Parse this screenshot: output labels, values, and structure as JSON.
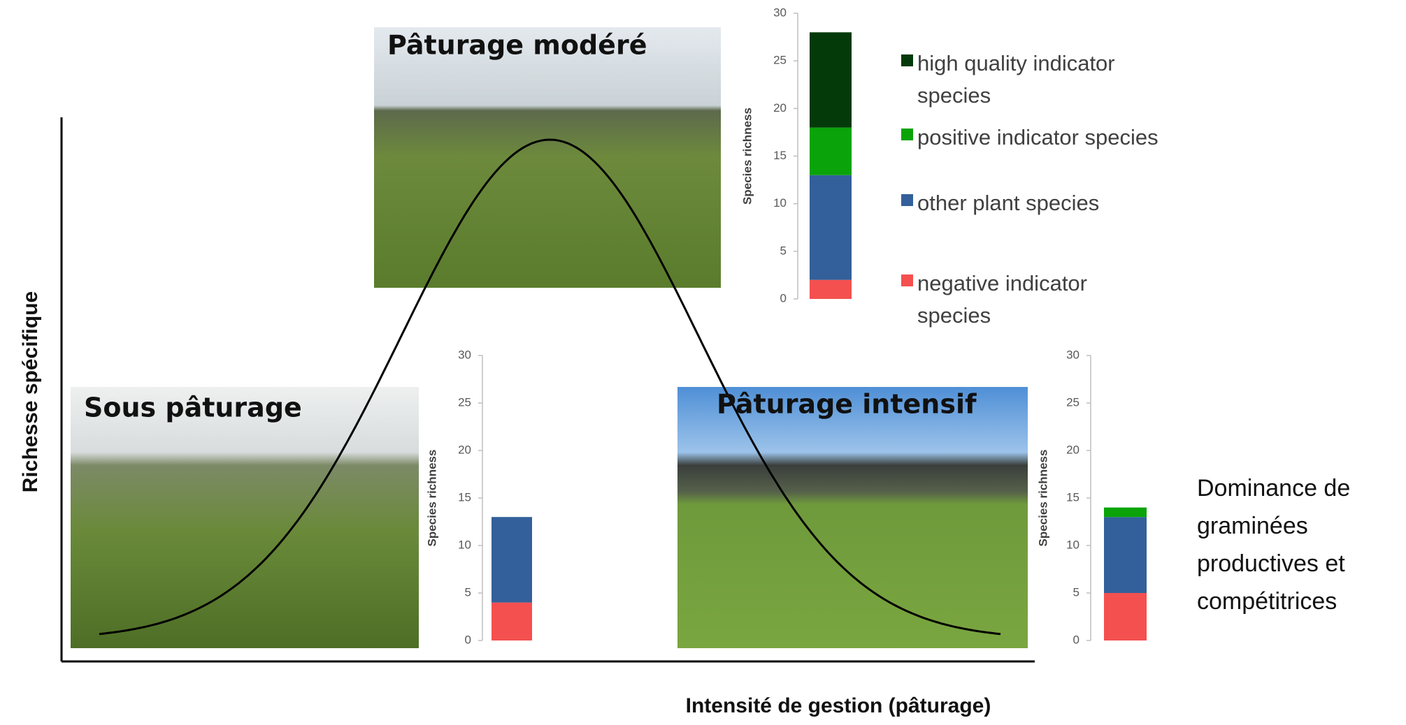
{
  "chart_data": [
    {
      "type": "bar",
      "stacked": true,
      "ylabel": "Species richness",
      "categories": [
        null
      ],
      "ylim": [
        0,
        30
      ],
      "yticks": [
        0,
        5,
        10,
        15,
        20,
        25,
        30
      ],
      "legend": true,
      "series": [
        {
          "name": "negative indicator species",
          "color": "#f4504f",
          "values": [
            2
          ]
        },
        {
          "name": "other plant species",
          "color": "#33609a",
          "values": [
            11
          ]
        },
        {
          "name": "positive indicator species",
          "color": "#0aa30a",
          "values": [
            5
          ]
        },
        {
          "name": "high quality indicator species",
          "color": "#043a0a",
          "values": [
            10
          ]
        }
      ]
    },
    {
      "type": "bar",
      "stacked": true,
      "ylabel": "Species richness",
      "categories": [
        null
      ],
      "ylim": [
        0,
        30
      ],
      "yticks": [
        0,
        5,
        10,
        15,
        20,
        25,
        30
      ],
      "legend": false,
      "series": [
        {
          "color": "#f4504f",
          "values": [
            4
          ]
        },
        {
          "color": "#33609a",
          "values": [
            9
          ]
        },
        {
          "color": "#0aa30a",
          "values": [
            0
          ]
        },
        {
          "color": "#043a0a",
          "values": [
            0
          ]
        }
      ]
    },
    {
      "type": "bar",
      "stacked": true,
      "ylabel": "Species richness",
      "categories": [
        null
      ],
      "ylim": [
        0,
        30
      ],
      "yticks": [
        0,
        5,
        10,
        15,
        20,
        25,
        30
      ],
      "legend": false,
      "series": [
        {
          "color": "#f4504f",
          "values": [
            5
          ]
        },
        {
          "color": "#33609a",
          "values": [
            8
          ]
        },
        {
          "color": "#0aa30a",
          "values": [
            1
          ]
        },
        {
          "color": "#043a0a",
          "values": [
            0
          ]
        }
      ]
    }
  ],
  "diagram": {
    "y_axis_title": "Richesse spécifique",
    "x_axis_title": "Intensité de gestion (pâturage)",
    "photo_labels": [
      "Pâturage modéré",
      "Sous pâturage",
      "Pâturage intensif"
    ],
    "annotation": [
      "Dominance de",
      "graminées",
      "productives et",
      "compétitrices"
    ]
  }
}
